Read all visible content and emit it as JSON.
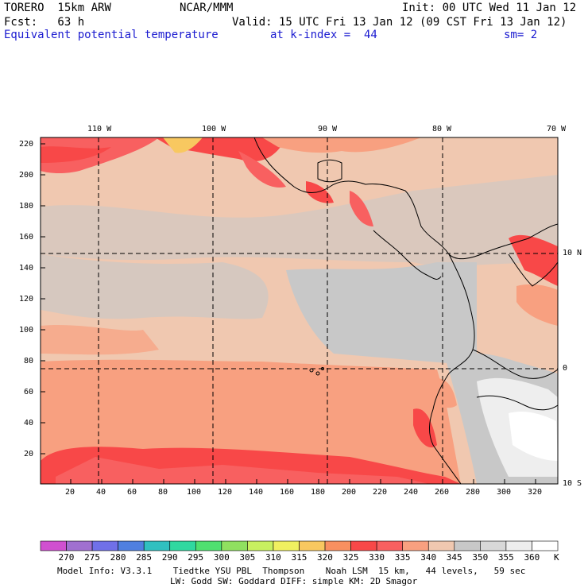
{
  "header": {
    "model": "TORERO  15km ARW",
    "center": "NCAR/MMM",
    "init": "Init: 00 UTC Wed 11 Jan 12",
    "fcst": "Fcst:   63 h",
    "valid": "Valid: 15 UTC Fri 13 Jan 12 (09 CST Fri 13 Jan 12)",
    "field": "Equivalent potential temperature",
    "level": "at k-index =  44",
    "smooth": "sm= 2"
  },
  "map": {
    "lon_labels": [
      "110 W",
      "100 W",
      "90 W",
      "80 W",
      "70 W"
    ],
    "lat_labels": [
      "10 N",
      "0",
      "10 S"
    ],
    "y_ticks": [
      "220",
      "200",
      "180",
      "160",
      "140",
      "120",
      "100",
      "80",
      "60",
      "40",
      "20"
    ],
    "x_ticks": [
      "20",
      "40",
      "60",
      "80",
      "100",
      "120",
      "140",
      "160",
      "180",
      "200",
      "220",
      "240",
      "260",
      "280",
      "300",
      "320"
    ]
  },
  "colorbar": {
    "labels": [
      "270",
      "275",
      "280",
      "285",
      "290",
      "295",
      "300",
      "305",
      "310",
      "315",
      "320",
      "325",
      "330",
      "335",
      "340",
      "345",
      "350",
      "355",
      "360"
    ],
    "unit": "K",
    "colors": [
      "#d050d0",
      "#a070d0",
      "#7070e8",
      "#5080e0",
      "#30c0c0",
      "#30d8a0",
      "#50e070",
      "#90e060",
      "#c8f060",
      "#f0f060",
      "#f8c860",
      "#f89060",
      "#f84848",
      "#f86060",
      "#f8a080",
      "#f0c8b0",
      "#c8c8c8",
      "#d8d8d8",
      "#eeeeee",
      "#ffffff"
    ]
  },
  "footer": {
    "line1": "Model Info: V3.3.1    Tiedtke YSU PBL  Thompson    Noah LSM  15 km,   44 levels,   59 sec",
    "line2": "LW: Godd SW: Goddard DIFF: simple KM: 2D Smagor"
  }
}
